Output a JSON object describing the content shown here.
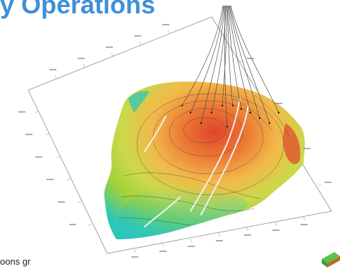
{
  "title": "y Operations",
  "footer_text": "oons gr",
  "colors": {
    "title": "#3f8fd8",
    "surface_high": "#e0452a",
    "surface_mid": "#f2b84a",
    "surface_low": "#9fd13a",
    "surface_lowest": "#2cc7b8",
    "fault_trace": "#f4f4f4",
    "contour": "#3a3a3a",
    "well_path": "#4a4a4a",
    "axis_box": "#8a8a8a",
    "icon_top": "#5cc24d",
    "icon_side": "#c06a2a"
  },
  "icons": {
    "corner": "3d-cube-icon"
  }
}
